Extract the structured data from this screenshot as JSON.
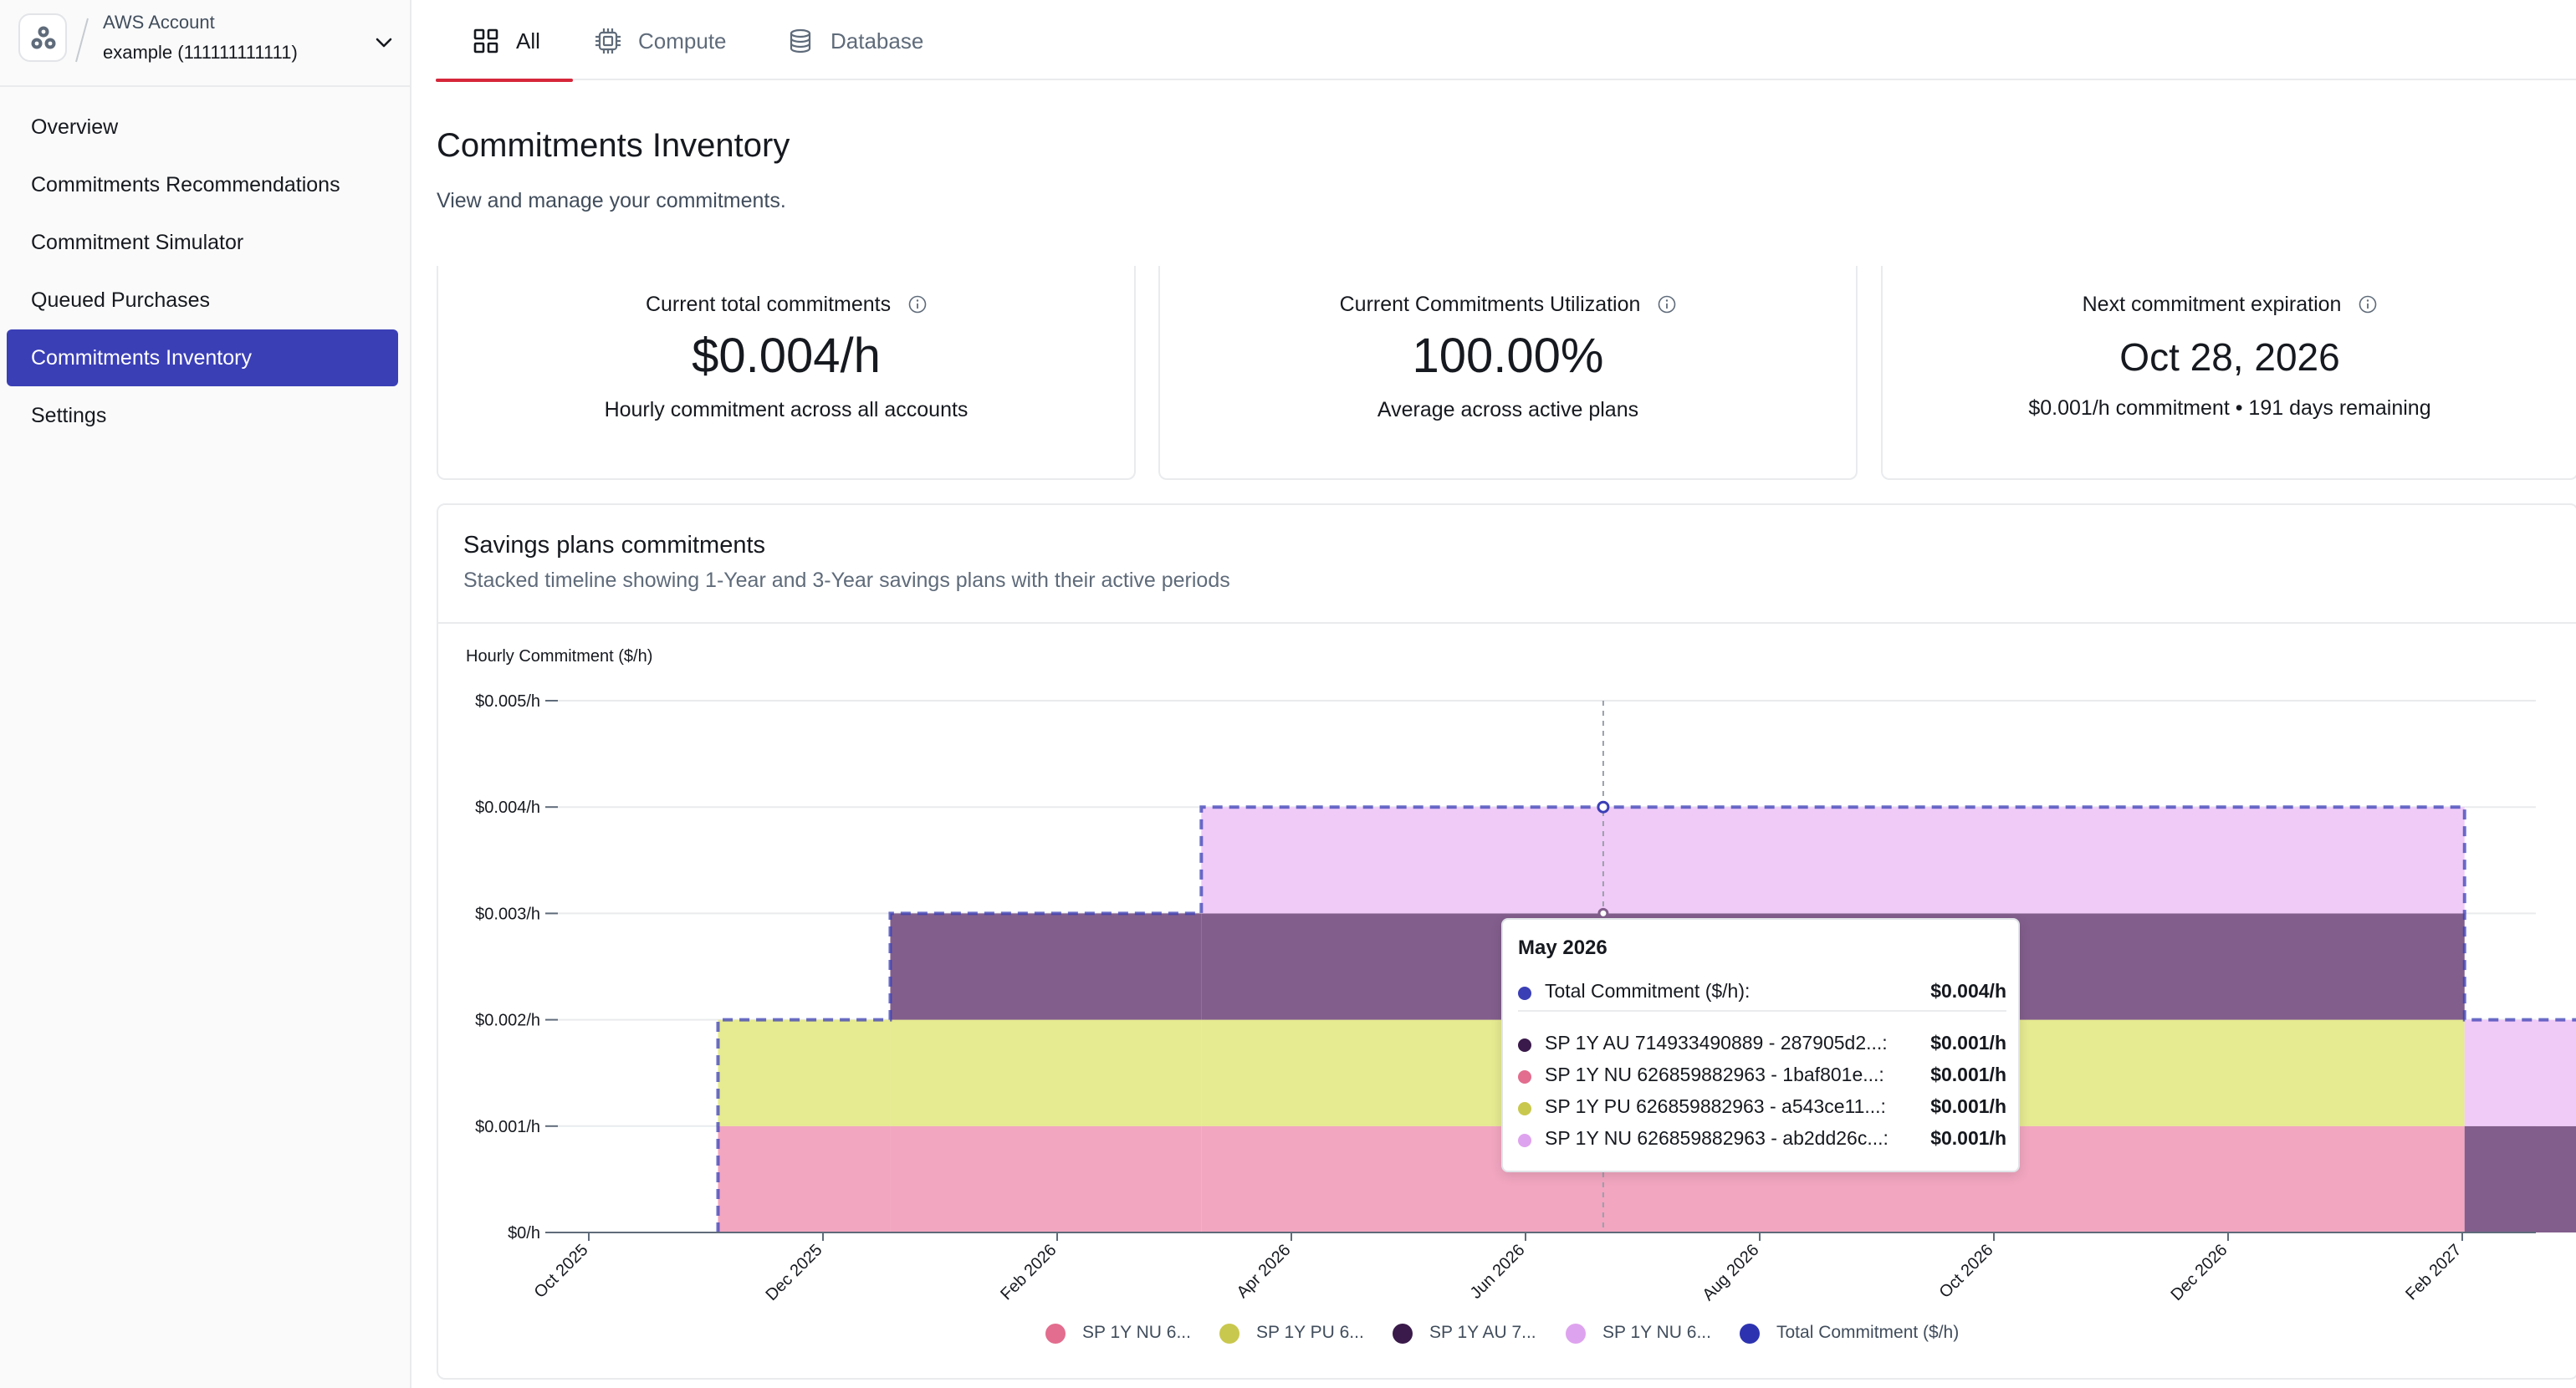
{
  "account": {
    "label": "AWS Account",
    "name": "example (111111111111)"
  },
  "nav": {
    "items": [
      {
        "label": "Overview",
        "active": false
      },
      {
        "label": "Commitments Recommendations",
        "active": false
      },
      {
        "label": "Commitment Simulator",
        "active": false
      },
      {
        "label": "Queued Purchases",
        "active": false
      },
      {
        "label": "Commitments Inventory",
        "active": true
      },
      {
        "label": "Settings",
        "active": false
      }
    ]
  },
  "tabs": [
    {
      "label": "All",
      "icon": "grid-icon",
      "selected": true
    },
    {
      "label": "Compute",
      "icon": "cpu-icon",
      "selected": false
    },
    {
      "label": "Database",
      "icon": "database-icon",
      "selected": false
    }
  ],
  "page": {
    "title": "Commitments Inventory",
    "subtitle": "View and manage your commitments."
  },
  "cards": [
    {
      "label": "Current total commitments",
      "value": "$0.004/h",
      "sub": "Hourly commitment across all accounts"
    },
    {
      "label": "Current Commitments Utilization",
      "value": "100.00%",
      "sub": "Average across active plans"
    },
    {
      "label": "Next commitment expiration",
      "value": "Oct 28, 2026",
      "sub": "$0.001/h commitment • 191 days remaining"
    }
  ],
  "chart_panel": {
    "title": "Savings plans commitments",
    "description": "Stacked timeline showing 1-Year and 3-Year savings plans with their active periods"
  },
  "chart_data": {
    "type": "area",
    "ylabel": "Hourly Commitment ($/h)",
    "y_ticks": [
      "$0/h",
      "$0.001/h",
      "$0.002/h",
      "$0.003/h",
      "$0.004/h",
      "$0.005/h"
    ],
    "ylim": [
      0,
      0.005
    ],
    "x_ticks": [
      "Oct 2025",
      "Dec 2025",
      "Feb 2026",
      "Apr 2026",
      "Jun 2026",
      "Aug 2026",
      "Oct 2026",
      "Dec 2026",
      "Feb 2027"
    ],
    "stacked": true,
    "step": true,
    "grid": true,
    "legend_position": "bottom",
    "series": [
      {
        "name": "SP 1Y NU 6...",
        "color": "#f2a6c0",
        "start": "2025-10-28",
        "end": "2026-10-28",
        "value": 0.001
      },
      {
        "name": "SP 1Y PU 6...",
        "color": "#e6ea90",
        "start": "2025-10-28",
        "end": "2026-10-28",
        "value": 0.001
      },
      {
        "name": "SP 1Y AU 7...",
        "color": "#825e8c",
        "start": "2025-12-03",
        "end": "2026-12-03",
        "value": 0.001
      },
      {
        "name": "SP 1Y NU 6...",
        "color": "#f0cbf8",
        "start": "2026-02-06",
        "end": "2027-02-06",
        "value": 0.001
      }
    ],
    "total_series": {
      "name": "Total Commitment ($/h)",
      "color": "#3b3fb6",
      "line_style": "dashed"
    },
    "legend_dot_colors": [
      "#e26d8e",
      "#c9c84e",
      "#3a1a4a",
      "#dea3ee",
      "#2d33b0"
    ],
    "hover": {
      "date": "2026-05-01"
    }
  },
  "tooltip": {
    "title": "May 2026",
    "total_label": "Total Commitment ($/h):",
    "total_value": "$0.004/h",
    "total_color": "#3b3fb6",
    "rows": [
      {
        "name": "SP 1Y AU 714933490889 - 287905d2...:",
        "value": "$0.001/h",
        "color": "#3a1a4a"
      },
      {
        "name": "SP 1Y NU 626859882963 - 1baf801e...:",
        "value": "$0.001/h",
        "color": "#e26d8e"
      },
      {
        "name": "SP 1Y PU 626859882963 - a543ce11...:",
        "value": "$0.001/h",
        "color": "#c9c84e"
      },
      {
        "name": "SP 1Y NU 626859882963 - ab2dd26c...:",
        "value": "$0.001/h",
        "color": "#dea3ee"
      }
    ]
  }
}
